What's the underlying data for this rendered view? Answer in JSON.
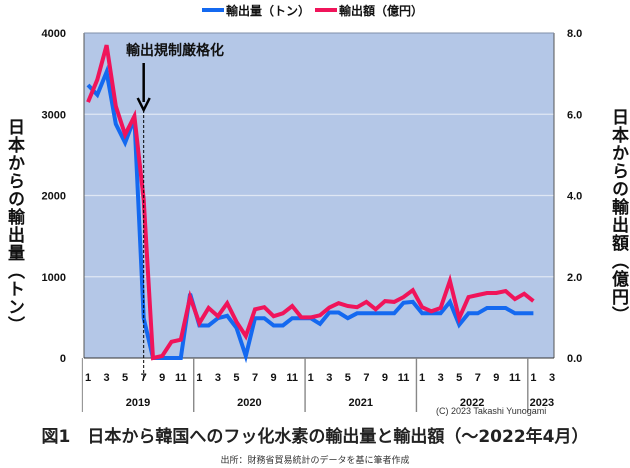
{
  "chart_data": {
    "type": "line",
    "title": "図1　日本から韓国へのフッ化水素の輸出量と輸出額（～2022年4月）",
    "source": "出所：財務省貿易統計のデータを基に筆者作成",
    "copyright": "(C) 2023 Takashi Yunogami",
    "annotation": {
      "text": "輸出規制厳格化",
      "at": "2019-7"
    },
    "xlabel": "",
    "ylabel_left": "日本からの輸出量（トン）",
    "ylabel_right": "日本からの輸出額（億円）",
    "ylim_left": [
      0,
      4000
    ],
    "ylim_right": [
      0,
      8.0
    ],
    "yticks_left": [
      "0",
      "1000",
      "2000",
      "3000",
      "4000"
    ],
    "yticks_right": [
      "0.0",
      "2.0",
      "4.0",
      "6.0",
      "8.0"
    ],
    "grid": true,
    "legend_position": "top",
    "year_groups": [
      {
        "year": "2019",
        "months": [
          "1",
          "3",
          "5",
          "7",
          "9",
          "11"
        ]
      },
      {
        "year": "2020",
        "months": [
          "1",
          "3",
          "5",
          "7",
          "9",
          "11"
        ]
      },
      {
        "year": "2021",
        "months": [
          "1",
          "3",
          "5",
          "7",
          "9",
          "11"
        ]
      },
      {
        "year": "2022",
        "months": [
          "1",
          "3",
          "5",
          "7",
          "9",
          "11"
        ]
      },
      {
        "year": "2023",
        "months": [
          "1",
          "3"
        ]
      }
    ],
    "x": [
      "2019-1",
      "2019-2",
      "2019-3",
      "2019-4",
      "2019-5",
      "2019-6",
      "2019-7",
      "2019-8",
      "2019-9",
      "2019-10",
      "2019-11",
      "2019-12",
      "2020-1",
      "2020-2",
      "2020-3",
      "2020-4",
      "2020-5",
      "2020-6",
      "2020-7",
      "2020-8",
      "2020-9",
      "2020-10",
      "2020-11",
      "2020-12",
      "2021-1",
      "2021-2",
      "2021-3",
      "2021-4",
      "2021-5",
      "2021-6",
      "2021-7",
      "2021-8",
      "2021-9",
      "2021-10",
      "2021-11",
      "2021-12",
      "2022-1",
      "2022-2",
      "2022-3",
      "2022-4",
      "2022-5",
      "2022-6",
      "2022-7",
      "2022-8",
      "2022-9",
      "2022-10",
      "2022-11",
      "2022-12",
      "2023-1"
    ],
    "series": [
      {
        "name": "輸出量（トン）",
        "axis": "left",
        "color": "#1469f0",
        "values": [
          3360,
          3240,
          3520,
          2880,
          2650,
          2950,
          490,
          0,
          0,
          0,
          0,
          790,
          400,
          400,
          490,
          520,
          370,
          25,
          490,
          490,
          400,
          400,
          490,
          490,
          490,
          420,
          560,
          560,
          490,
          550,
          550,
          550,
          550,
          550,
          680,
          690,
          550,
          550,
          550,
          690,
          410,
          550,
          550,
          615,
          615,
          615,
          550,
          550,
          550
        ]
      },
      {
        "name": "輸出額（億円）",
        "axis": "right",
        "color": "#f0145a",
        "values": [
          6.3,
          6.85,
          7.7,
          6.2,
          5.5,
          5.95,
          3.9,
          0.0,
          0.05,
          0.4,
          0.45,
          1.5,
          0.86,
          1.23,
          1.03,
          1.35,
          0.89,
          0.54,
          1.2,
          1.25,
          1.03,
          1.1,
          1.28,
          1.0,
          1.0,
          1.05,
          1.24,
          1.35,
          1.28,
          1.25,
          1.38,
          1.2,
          1.4,
          1.38,
          1.5,
          1.67,
          1.25,
          1.15,
          1.23,
          1.9,
          0.98,
          1.5,
          1.55,
          1.6,
          1.6,
          1.65,
          1.45,
          1.58,
          1.4
        ]
      }
    ]
  },
  "colors": {
    "plot_bg": "#b4c7e7",
    "gridline": "#dfe7f4",
    "axis": "#555555"
  }
}
